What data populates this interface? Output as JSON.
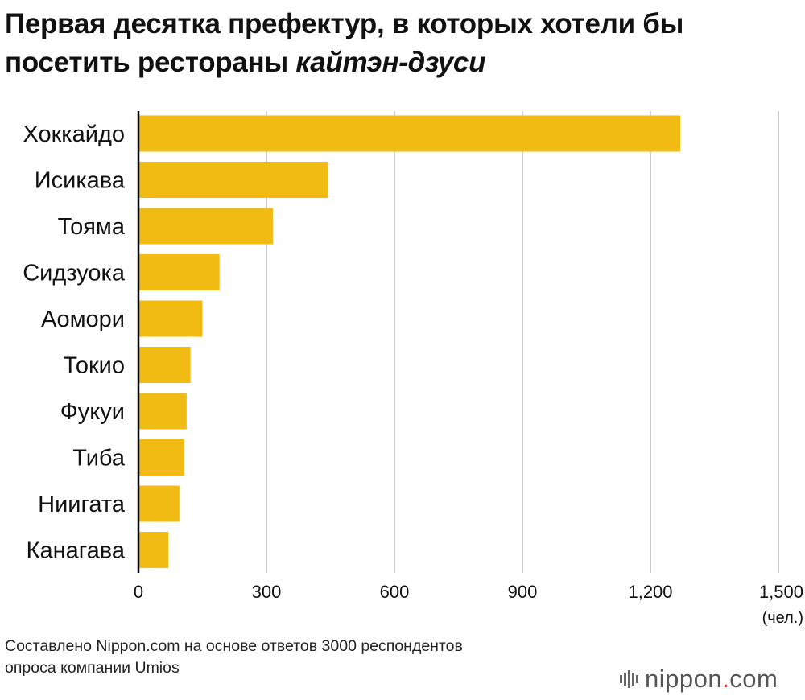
{
  "title": {
    "line1": "Первая десятка префектур, в которых хотели бы",
    "line2_prefix": "посетить рестораны ",
    "line2_italic": "кайтэн-дзуси"
  },
  "footnote": {
    "line1": "Составлено Nippon.com на основе ответов 3000 респондентов",
    "line2": "опроса компании Umios"
  },
  "logo": {
    "brand": "nippon",
    "dot": ".",
    "tld": "com"
  },
  "colors": {
    "bar": "#f2bb13",
    "grid": "#cccccc",
    "axis": "#000000",
    "text": "#111111"
  },
  "chart_data": {
    "type": "bar",
    "orientation": "horizontal",
    "categories": [
      "Хоккайдо",
      "Исикава",
      "Тояма",
      "Сидзуока",
      "Аомори",
      "Токио",
      "Фукуи",
      "Тиба",
      "Ниигата",
      "Канагава"
    ],
    "values": [
      1270,
      445,
      315,
      190,
      150,
      122,
      113,
      107,
      96,
      70
    ],
    "xlim": [
      0,
      1500
    ],
    "xticks": [
      0,
      300,
      600,
      900,
      1200,
      1500
    ],
    "xtick_labels": [
      "0",
      "300",
      "600",
      "900",
      "1,200",
      "1,500"
    ],
    "unit_label": "(чел.)",
    "grid": true,
    "legend": "none"
  }
}
